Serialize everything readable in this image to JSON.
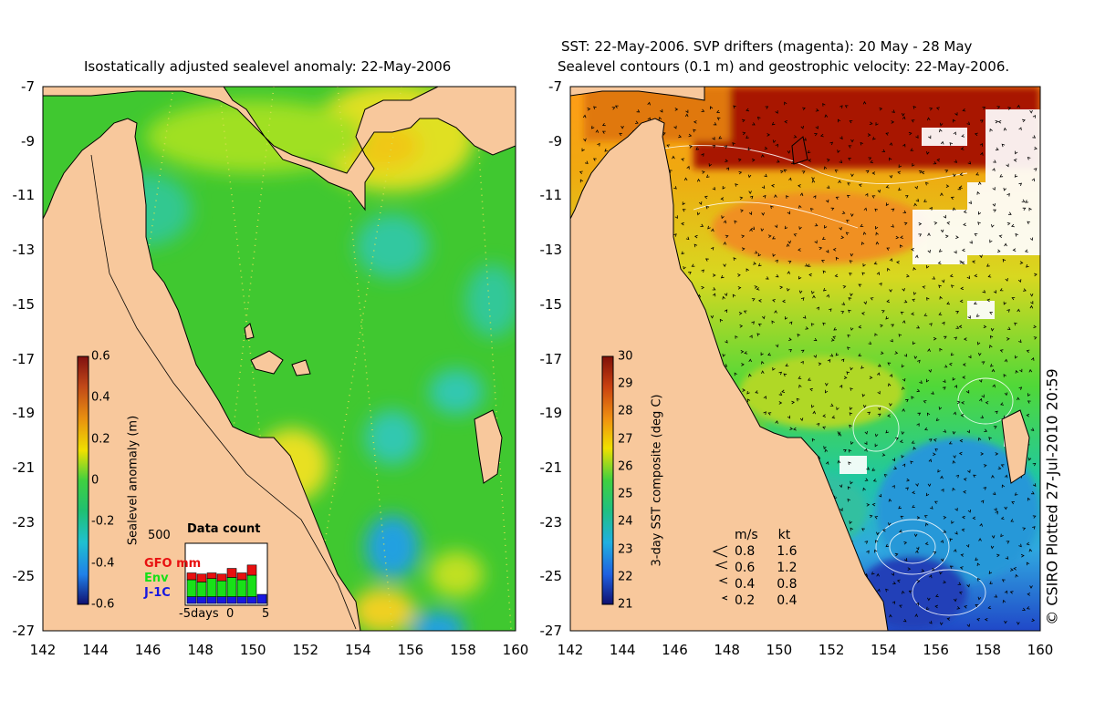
{
  "left_panel": {
    "title": "Isostatically adjusted sealevel anomaly: 22-May-2006",
    "colorbar": {
      "label": "Sealevel anomaly (m)",
      "ticks": [
        "0.6",
        "0.4",
        "0.2",
        "0",
        "-0.2",
        "-0.4",
        "-0.6"
      ],
      "range": [
        -0.6,
        0.6
      ]
    },
    "data_count": {
      "title": "Data count",
      "max_label": "500",
      "series_labels": [
        "GFO mm",
        "Env",
        "J-1C"
      ],
      "series_colors": [
        "#e81010",
        "#18e018",
        "#1818e0"
      ],
      "x_labels": [
        "-5days",
        "0",
        "5"
      ],
      "stacks": [
        {
          "j1c": 60,
          "env": 150,
          "gfo": 60
        },
        {
          "j1c": 60,
          "env": 130,
          "gfo": 70
        },
        {
          "j1c": 60,
          "env": 160,
          "gfo": 50
        },
        {
          "j1c": 60,
          "env": 140,
          "gfo": 60
        },
        {
          "j1c": 60,
          "env": 170,
          "gfo": 80
        },
        {
          "j1c": 60,
          "env": 150,
          "gfo": 60
        },
        {
          "j1c": 60,
          "env": 190,
          "gfo": 90
        },
        {
          "j1c": 80,
          "env": 0,
          "gfo": 0
        }
      ]
    }
  },
  "right_panel": {
    "title_line1": "SST: 22-May-2006. SVP drifters (magenta): 20 May - 28 May",
    "title_line2": "Sealevel contours (0.1 m) and geostrophic velocity: 22-May-2006.",
    "colorbar": {
      "label": "3-day SST composite (deg C)",
      "ticks": [
        "30",
        "29",
        "28",
        "27",
        "26",
        "25",
        "24",
        "23",
        "22",
        "21"
      ],
      "range": [
        21,
        30
      ]
    },
    "velocity_legend": {
      "header_ms": "m/s",
      "header_kt": "kt",
      "rows": [
        {
          "ms": "0.8",
          "kt": "1.6"
        },
        {
          "ms": "0.6",
          "kt": "1.2"
        },
        {
          "ms": "0.4",
          "kt": "0.8"
        },
        {
          "ms": "0.2",
          "kt": "0.4"
        }
      ]
    }
  },
  "axes": {
    "lat_labels": [
      "-7",
      "-9",
      "-11",
      "-13",
      "-15",
      "-17",
      "-19",
      "-21",
      "-23",
      "-25",
      "-27"
    ],
    "lon_labels": [
      "142",
      "144",
      "146",
      "148",
      "150",
      "152",
      "154",
      "156",
      "158",
      "160"
    ],
    "lat_range": [
      -27,
      -7
    ],
    "lon_range": [
      142,
      160
    ]
  },
  "credit": "© CSIRO Plotted 27-Jul-2010 20:59",
  "colors": {
    "land": "#f8c89c",
    "ocean_base": "#40c830",
    "warm_north": "#a81804",
    "cloud": "#ffffff",
    "deep_blue": "#1860c8"
  }
}
